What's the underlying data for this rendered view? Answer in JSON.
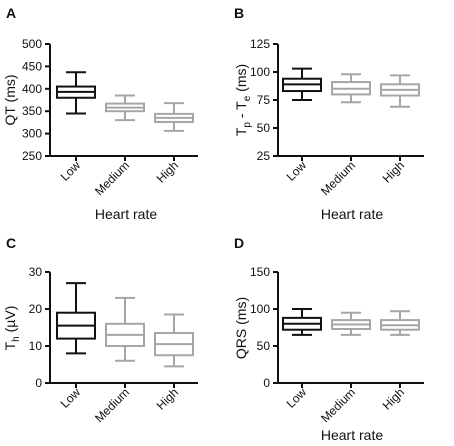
{
  "figure": {
    "colors": {
      "Low": "#111111",
      "Medium": "#a6a6a6",
      "High": "#a6a6a6"
    }
  },
  "chart_data": [
    {
      "panel": "A",
      "type": "boxplot",
      "categories": [
        "Low",
        "Medium",
        "High"
      ],
      "xlabel": "Heart rate",
      "ylabel": "QT (ms)",
      "ylim": [
        250,
        500
      ],
      "yticks": [
        "250",
        "300",
        "350",
        "400",
        "450",
        "500"
      ],
      "boxes": [
        {
          "category": "Low",
          "min": 345,
          "q1": 380,
          "median": 393,
          "q3": 405,
          "max": 437
        },
        {
          "category": "Medium",
          "min": 330,
          "q1": 350,
          "median": 358,
          "q3": 367,
          "max": 385
        },
        {
          "category": "High",
          "min": 306,
          "q1": 326,
          "median": 335,
          "q3": 344,
          "max": 368
        }
      ]
    },
    {
      "panel": "B",
      "type": "boxplot",
      "categories": [
        "Low",
        "Medium",
        "High"
      ],
      "xlabel": "Heart rate",
      "ylabel": "Tp - Te (ms)",
      "ylim": [
        25,
        125
      ],
      "yticks": [
        "25",
        "50",
        "75",
        "100",
        "125"
      ],
      "boxes": [
        {
          "category": "Low",
          "min": 75,
          "q1": 83,
          "median": 89,
          "q3": 94,
          "max": 103
        },
        {
          "category": "Medium",
          "min": 73,
          "q1": 80,
          "median": 85,
          "q3": 91,
          "max": 98
        },
        {
          "category": "High",
          "min": 69,
          "q1": 79,
          "median": 84,
          "q3": 89,
          "max": 97
        }
      ]
    },
    {
      "panel": "C",
      "type": "boxplot",
      "categories": [
        "Low",
        "Medium",
        "High"
      ],
      "xlabel": "",
      "ylabel": "Th (µV)",
      "ylim": [
        0,
        30
      ],
      "yticks": [
        "0",
        "10",
        "20",
        "30"
      ],
      "boxes": [
        {
          "category": "Low",
          "min": 8,
          "q1": 12,
          "median": 15.5,
          "q3": 19,
          "max": 27
        },
        {
          "category": "Medium",
          "min": 6,
          "q1": 10,
          "median": 13,
          "q3": 16,
          "max": 23
        },
        {
          "category": "High",
          "min": 4.5,
          "q1": 7.5,
          "median": 10.5,
          "q3": 13.5,
          "max": 18.5
        }
      ]
    },
    {
      "panel": "D",
      "type": "boxplot",
      "categories": [
        "Low",
        "Medium",
        "High"
      ],
      "xlabel": "Heart rate",
      "ylabel": "QRS (ms)",
      "ylim": [
        0,
        150
      ],
      "yticks": [
        "0",
        "50",
        "100",
        "150"
      ],
      "boxes": [
        {
          "category": "Low",
          "min": 65,
          "q1": 72,
          "median": 80,
          "q3": 88,
          "max": 100
        },
        {
          "category": "Medium",
          "min": 65,
          "q1": 73,
          "median": 79,
          "q3": 85,
          "max": 95
        },
        {
          "category": "High",
          "min": 65,
          "q1": 72,
          "median": 78,
          "q3": 85,
          "max": 97
        }
      ]
    }
  ]
}
